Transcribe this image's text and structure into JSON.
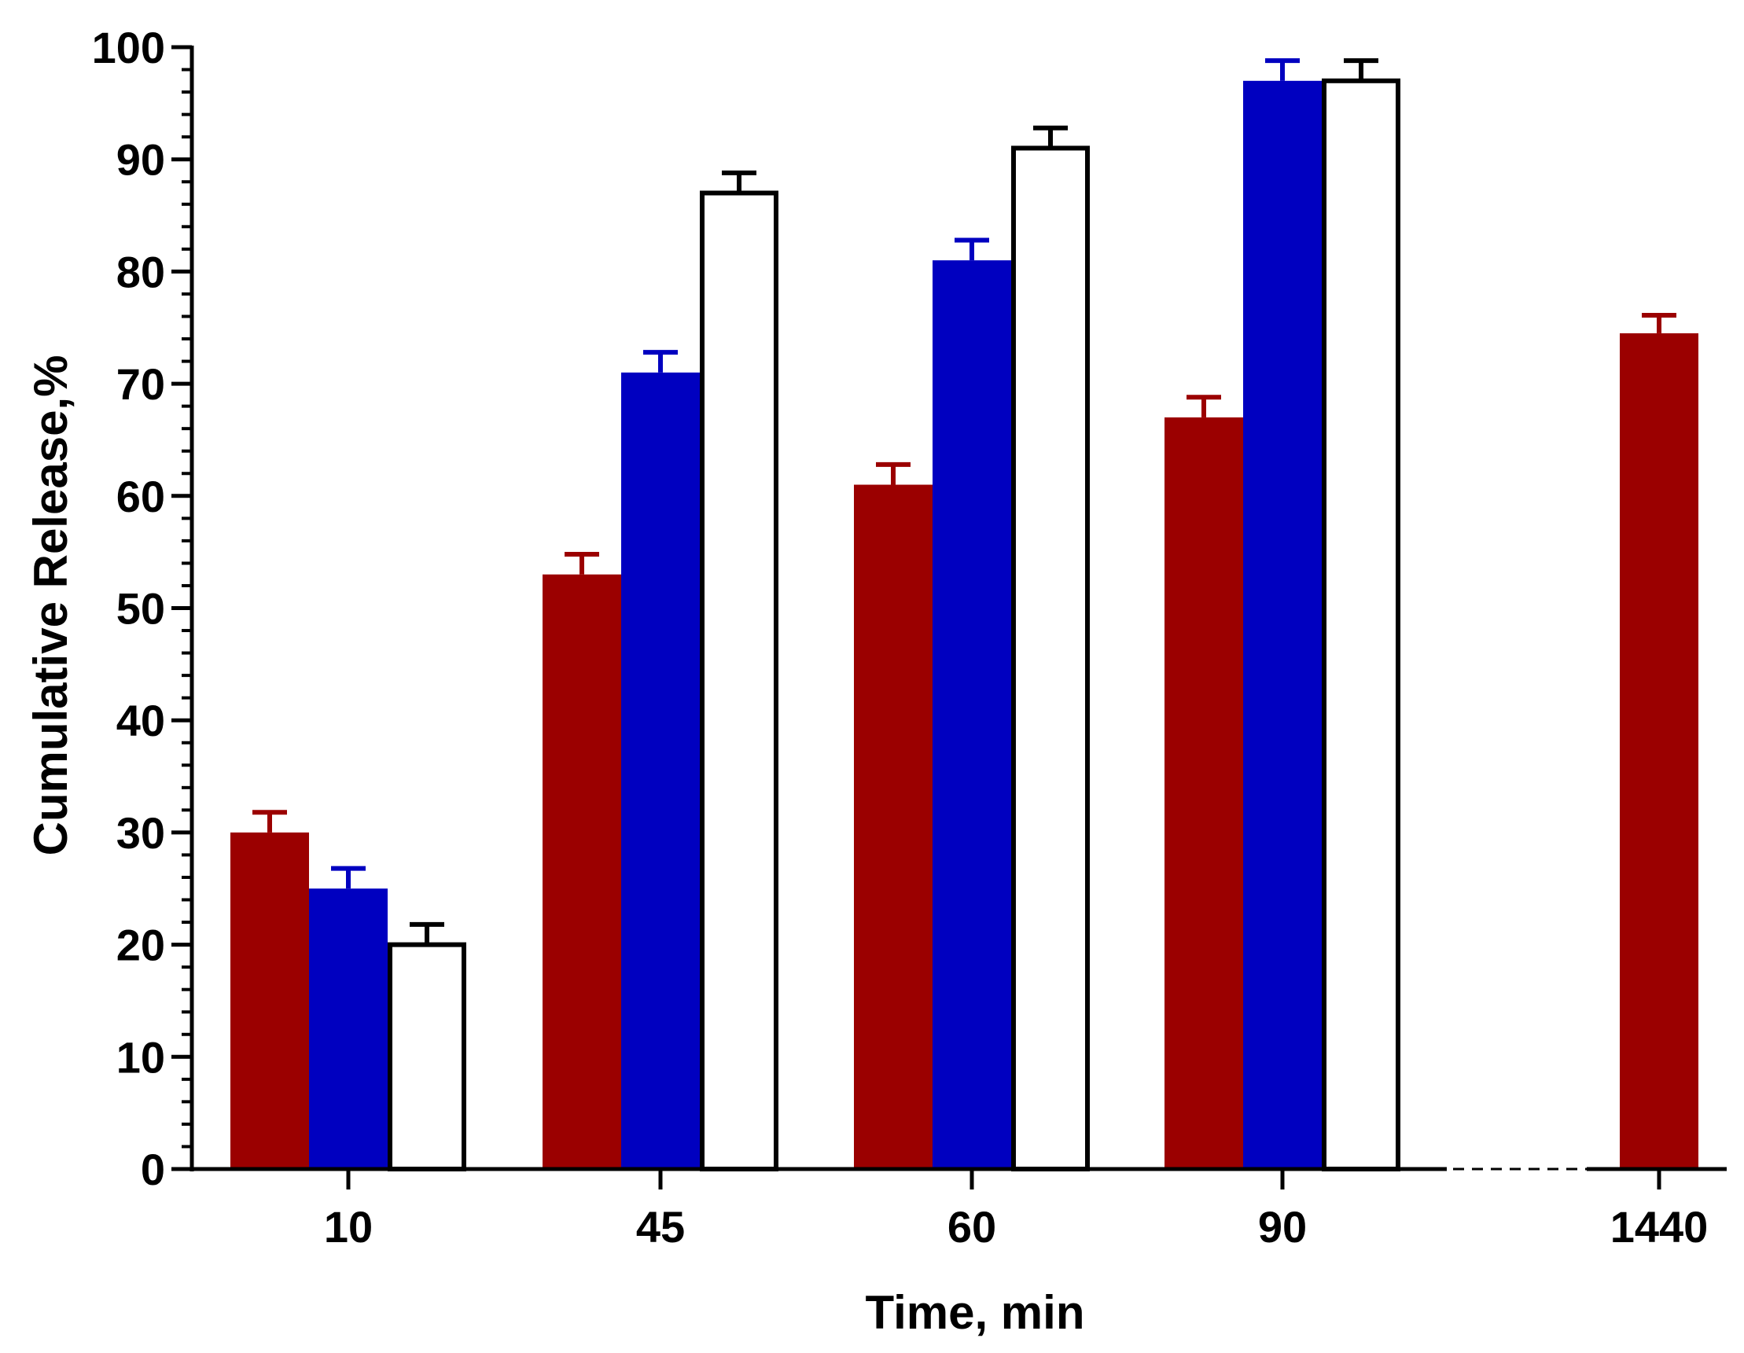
{
  "chart_data": {
    "type": "bar",
    "title": "",
    "xlabel": "Time, min",
    "ylabel": "Cumulative Release,%",
    "ylim": [
      0,
      100
    ],
    "y_major_ticks": [
      "0",
      "10",
      "20",
      "30",
      "40",
      "50",
      "60",
      "70",
      "80",
      "90",
      "100"
    ],
    "y_minor_step": 2,
    "categories": [
      "10",
      "45",
      "60",
      "90",
      "1440"
    ],
    "axis_break_after": "90",
    "legend": "none",
    "grid": false,
    "series": [
      {
        "name": "Series 1 (dark red)",
        "color": "#9b0000",
        "fill": "#9b0000",
        "stroke": "#9b0000",
        "values": [
          30,
          53,
          61,
          67,
          74.5
        ],
        "errors": [
          1.8,
          1.8,
          1.8,
          1.8,
          1.6
        ]
      },
      {
        "name": "Series 2 (blue)",
        "color": "#0000c0",
        "fill": "#0000c0",
        "stroke": "#0000c0",
        "values": [
          25,
          71,
          81,
          97,
          null
        ],
        "errors": [
          1.8,
          1.8,
          1.8,
          1.8,
          null
        ]
      },
      {
        "name": "Series 3 (white)",
        "color": "#000000",
        "fill": "#ffffff",
        "stroke": "#000000",
        "values": [
          20,
          87,
          91,
          97,
          null
        ],
        "errors": [
          1.8,
          1.8,
          1.8,
          1.8,
          null
        ]
      }
    ]
  }
}
